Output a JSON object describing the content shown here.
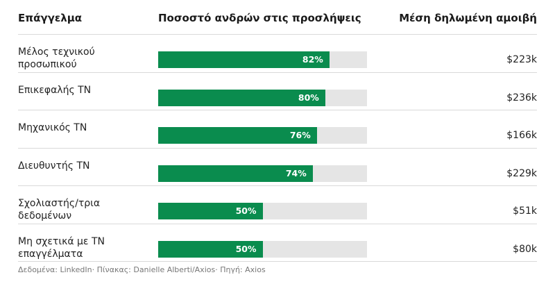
{
  "headers": {
    "occupation": "Επάγγελμα",
    "share": "Ποσοστό ανδρών στις προσλήψεις",
    "pay": "Μέση δηλωμένη αμοιβή"
  },
  "footer": "Δεδομένα: LinkedIn· Πίνακας: Danielle Alberti/Axios· Πηγή: Axios",
  "colors": {
    "bar_fill": "#0a8c4e",
    "bar_track": "#e5e5e5"
  },
  "chart_data": {
    "type": "bar",
    "title": "",
    "xlabel": "Ποσοστό ανδρών στις προσλήψεις",
    "xlim": [
      0,
      100
    ],
    "categories": [
      "Μέλος τεχνικού προσωπικού",
      "Επικεφαλής ΤΝ",
      "Μηχανικός ΤΝ",
      "Διευθυντής ΤΝ",
      "Σχολιαστής/τρια δεδομένων",
      "Μη σχετικά με ΤΝ επαγγέλματα"
    ],
    "values": [
      82,
      80,
      76,
      74,
      50,
      50
    ],
    "value_labels": [
      "82%",
      "80%",
      "76%",
      "74%",
      "50%",
      "50%"
    ],
    "pay_labels": [
      "$223k",
      "$236k",
      "$166k",
      "$229k",
      "$51k",
      "$80k"
    ]
  }
}
